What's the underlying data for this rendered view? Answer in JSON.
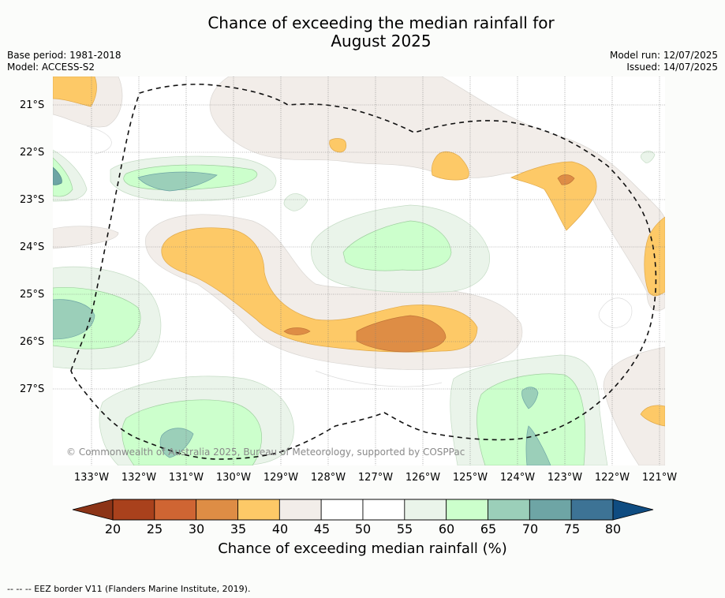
{
  "title": {
    "line1": "Chance of exceeding the median rainfall for",
    "line2": "August 2025"
  },
  "meta": {
    "base_period": "Base period: 1981-2018",
    "model": "Model: ACCESS-S2",
    "model_run": "Model run: 12/07/2025",
    "issued": "Issued: 14/07/2025"
  },
  "map": {
    "lat_labels": [
      "21°S",
      "22°S",
      "23°S",
      "24°S",
      "25°S",
      "26°S",
      "27°S"
    ],
    "lon_labels": [
      "133°W",
      "132°W",
      "131°W",
      "130°W",
      "129°W",
      "128°W",
      "127°W",
      "126°W",
      "125°W",
      "124°W",
      "123°W",
      "122°W",
      "121°W"
    ],
    "copyright": "© Commonwealth of Australia 2025, Bureau of Meteorology, supported by COSPPac",
    "contour_colors": {
      "c20": "#a9411c",
      "c25": "#cf6533",
      "c30": "#de8d45",
      "c35": "#fdc967",
      "c40": "#f2ede9",
      "c45": "#ffffff",
      "c50": "#ffffff",
      "c55": "#eaf4ea",
      "c60": "#ccffcc",
      "c65": "#9bcfb9",
      "c70": "#6ea5a5",
      "c75": "#3d7395",
      "c80": "#0f4c81"
    }
  },
  "colorbar": {
    "ticks": [
      "20",
      "25",
      "30",
      "35",
      "40",
      "45",
      "50",
      "55",
      "60",
      "65",
      "70",
      "75",
      "80"
    ],
    "colors": [
      "#a9411c",
      "#cf6533",
      "#de8d45",
      "#fdc967",
      "#f2ede9",
      "#ffffff",
      "#ffffff",
      "#eaf4ea",
      "#ccffcc",
      "#9bcfb9",
      "#6ea5a5",
      "#3d7395"
    ],
    "low_arrow_color": "#8c3417",
    "high_arrow_color": "#0f4c81",
    "label": "Chance of exceeding median rainfall (%)"
  },
  "footnote": "--  --  -- EEZ border V11 (Flanders Marine Institute, 2019)."
}
